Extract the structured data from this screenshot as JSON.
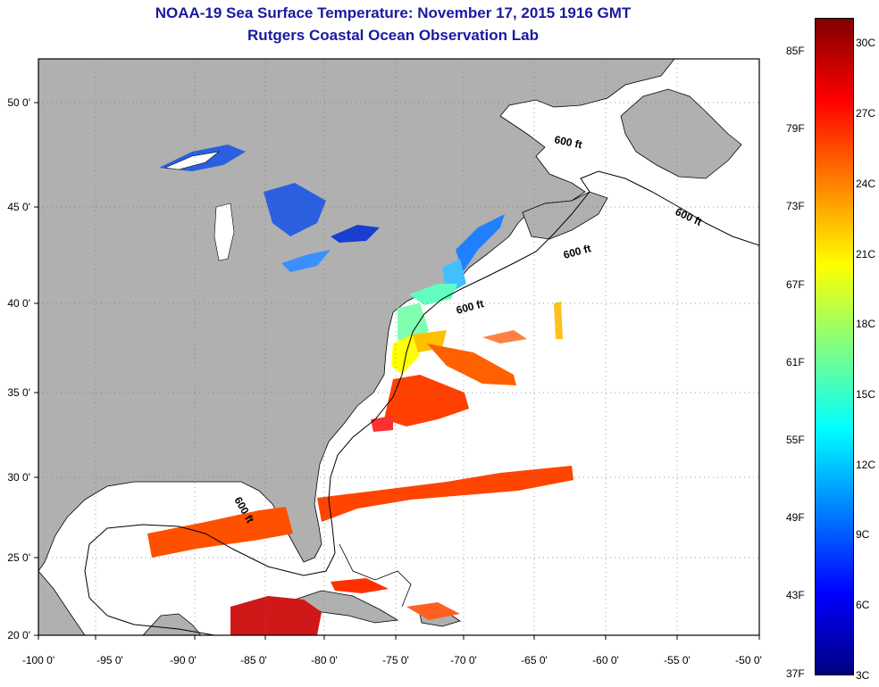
{
  "title": {
    "line1": "NOAA-19 Sea Surface Temperature:  November 17, 2015 1916 GMT",
    "line2": "Rutgers Coastal Ocean Observation Lab"
  },
  "map": {
    "lon_ticks": [
      "-100 0'",
      "-95 0'",
      "-90 0'",
      "-85 0'",
      "-80 0'",
      "-75 0'",
      "-70 0'",
      "-65 0'",
      "-60 0'",
      "-55 0'",
      "-50 0'"
    ],
    "lat_ticks": [
      "50 0'",
      "45 0'",
      "40 0'",
      "35 0'",
      "30 0'",
      "25 0'",
      "20 0'"
    ],
    "contour_label": "600 ft",
    "colors": {
      "land": "#b0b0b0",
      "ocean": "#ffffff",
      "title": "#1a1aa0"
    }
  },
  "colorbar": {
    "fahrenheit": [
      "85F",
      "79F",
      "73F",
      "67F",
      "61F",
      "55F",
      "49F",
      "43F",
      "37F"
    ],
    "celsius": [
      "30C",
      "27C",
      "24C",
      "21C",
      "18C",
      "15C",
      "12C",
      "9C",
      "6C",
      "3C"
    ],
    "gradient": [
      "#800000",
      "#ff0000",
      "#ff8000",
      "#ffff00",
      "#80ff80",
      "#00ffff",
      "#0080ff",
      "#0000ff",
      "#000080"
    ]
  }
}
